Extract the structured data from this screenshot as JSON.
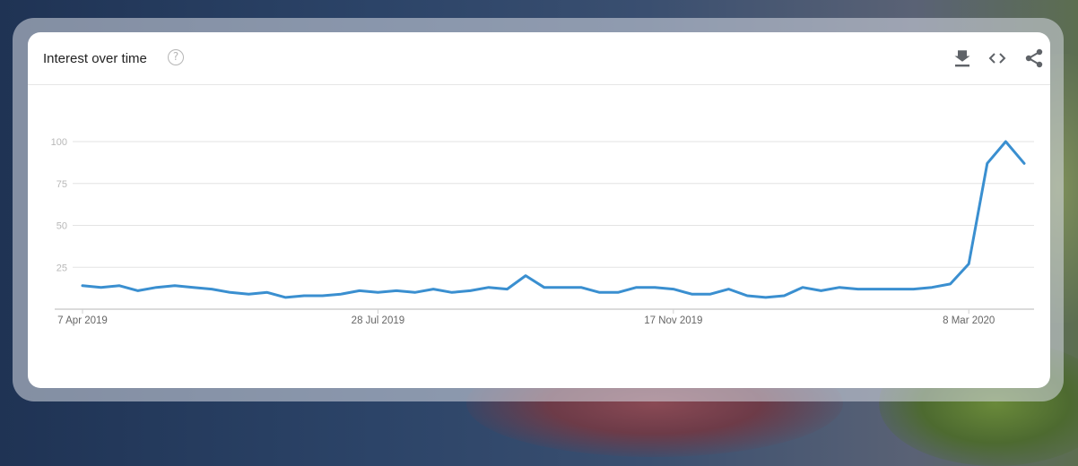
{
  "card": {
    "title": "Interest over time",
    "help_icon": "help-circle-icon",
    "actions": [
      {
        "name": "download-icon"
      },
      {
        "name": "embed-code-icon"
      },
      {
        "name": "share-icon"
      }
    ]
  },
  "colors": {
    "line": "#3a8fd0",
    "grid": "#e3e3e3",
    "axis": "#cfcfcf"
  },
  "chart_data": {
    "type": "line",
    "title": "Interest over time",
    "xlabel": "",
    "ylabel": "",
    "ylim": [
      0,
      100
    ],
    "yticks": [
      25,
      50,
      75,
      100
    ],
    "x_tick_labels": [
      {
        "label": "7 Apr 2019",
        "index": 0
      },
      {
        "label": "28 Jul 2019",
        "index": 16
      },
      {
        "label": "17 Nov 2019",
        "index": 32
      },
      {
        "label": "8 Mar 2020",
        "index": 48
      }
    ],
    "x_start": "2019-04-07",
    "x_step_days": 7,
    "grid": true,
    "series": [
      {
        "name": "",
        "values": [
          14,
          13,
          14,
          11,
          13,
          14,
          13,
          12,
          10,
          9,
          10,
          7,
          8,
          8,
          9,
          11,
          10,
          11,
          10,
          12,
          10,
          11,
          13,
          12,
          20,
          13,
          13,
          13,
          10,
          10,
          13,
          13,
          12,
          9,
          9,
          12,
          8,
          7,
          8,
          13,
          11,
          13,
          12,
          12,
          12,
          12,
          13,
          15,
          27,
          87,
          100,
          87
        ]
      }
    ]
  }
}
